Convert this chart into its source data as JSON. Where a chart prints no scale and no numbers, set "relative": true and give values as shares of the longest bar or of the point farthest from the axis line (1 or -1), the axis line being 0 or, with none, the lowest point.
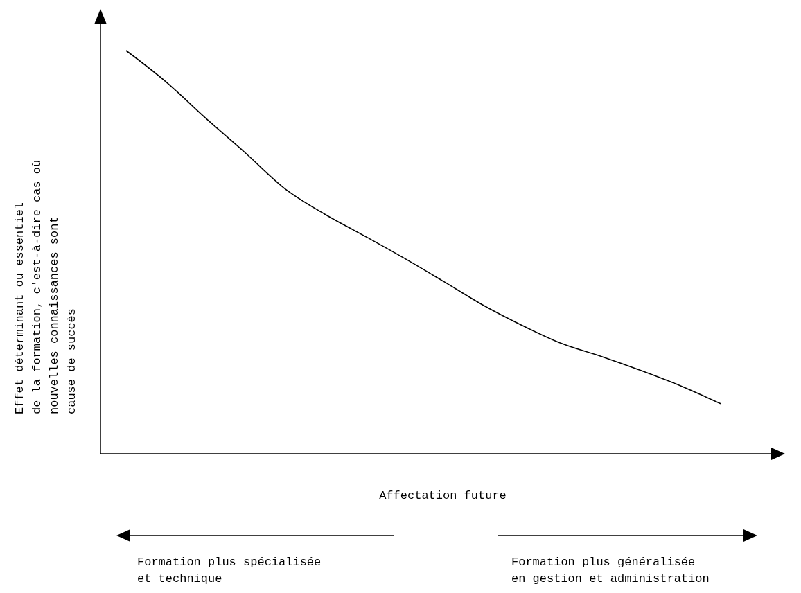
{
  "chart_data": {
    "type": "line",
    "relative": true,
    "xlabel": "Affectation future",
    "ylabel": "Effet déterminant ou essentiel\nde la formation, c'est-à-dire cas où\nnouvelles connaissances sont\ncause de succès",
    "categories": [
      null,
      null,
      null,
      null,
      null,
      null,
      null,
      null,
      null,
      null,
      null,
      null,
      null,
      null,
      null,
      null
    ],
    "series": [
      {
        "color": "#000000",
        "values": [
          1,
          0.923,
          0.833,
          0.747,
          0.658,
          0.595,
          0.541,
          0.486,
          0.428,
          0.369,
          0.318,
          0.273,
          0.241,
          0.206,
          0.168,
          0.124
        ]
      }
    ],
    "annotations": [
      "Formation plus spécialisée\net technique",
      "Formation plus généralisée\nen gestion et administration"
    ],
    "marker": "none",
    "line_style": "solid"
  }
}
